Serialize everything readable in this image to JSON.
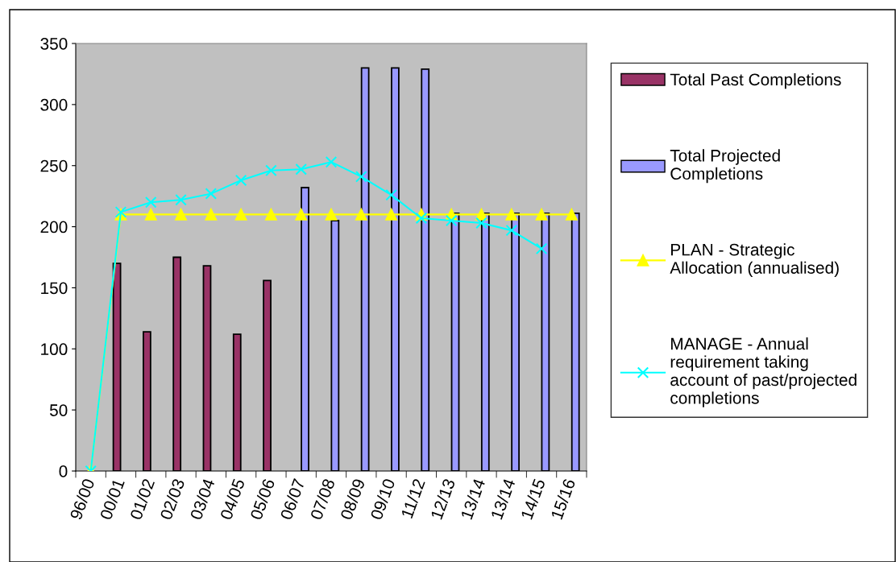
{
  "chart_data": {
    "type": "bar",
    "categories": [
      "96/00",
      "00/01",
      "01/02",
      "02/03",
      "03/04",
      "04/05",
      "05/06",
      "06/07",
      "07/08",
      "08/09",
      "09/10",
      "11/12",
      "12/13",
      "13/14",
      "13/14",
      "14/15",
      "15/16"
    ],
    "series": [
      {
        "name": "Total Past Completions",
        "color": "#993366",
        "values": [
          null,
          170,
          114,
          175,
          168,
          112,
          156,
          null,
          null,
          null,
          null,
          null,
          null,
          null,
          null,
          null,
          null
        ]
      },
      {
        "name": "Total Projected\nCompletions",
        "color": "#9999ff",
        "values": [
          null,
          null,
          null,
          null,
          null,
          null,
          null,
          232,
          205,
          330,
          330,
          329,
          211,
          211,
          211,
          211,
          211
        ]
      },
      {
        "name": "PLAN - Strategic\nAllocation (annualised)",
        "type": "line",
        "color": "#ffff00",
        "marker": "triangle",
        "values": [
          0,
          210,
          210,
          210,
          210,
          210,
          210,
          210,
          210,
          210,
          210,
          210,
          210,
          210,
          210,
          210,
          210
        ]
      },
      {
        "name": "MANAGE - Annual\nrequirement taking\naccount of past/projected\ncompletions",
        "type": "line",
        "color": "#00ffff",
        "marker": "cross",
        "values": [
          0,
          212,
          220,
          222,
          227,
          238,
          246,
          247,
          253,
          241,
          226,
          207,
          205,
          203,
          197,
          182,
          null
        ]
      }
    ],
    "ylim": [
      0,
      350
    ],
    "yticks": [
      0,
      50,
      100,
      150,
      200,
      250,
      300,
      350
    ],
    "grid": false,
    "legend": "right"
  }
}
